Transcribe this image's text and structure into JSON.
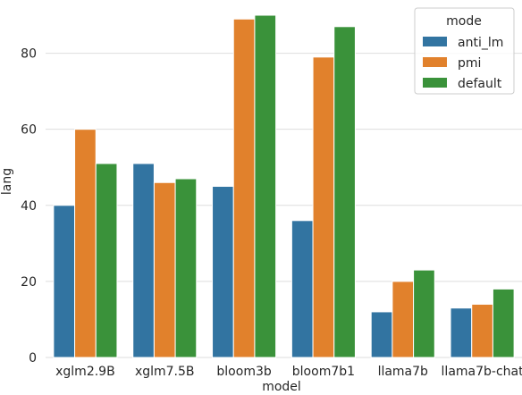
{
  "chart_data": {
    "type": "bar",
    "title": "",
    "xlabel": "model",
    "ylabel": "lang",
    "ylim": [
      0,
      94
    ],
    "yticks": [
      0,
      20,
      40,
      60,
      80
    ],
    "grid": true,
    "legend_position": "top-right",
    "legend_title": "mode",
    "categories": [
      "xglm2.9B",
      "xglm7.5B",
      "bloom3b",
      "bloom7b1",
      "llama7b",
      "llama7b-chat"
    ],
    "series": [
      {
        "name": "anti_lm",
        "color": "#3274a1",
        "values": [
          40,
          51,
          45,
          36,
          12,
          13
        ]
      },
      {
        "name": "pmi",
        "color": "#e1812c",
        "values": [
          60,
          46,
          89,
          79,
          20,
          14
        ]
      },
      {
        "name": "default",
        "color": "#3a923a",
        "values": [
          51,
          47,
          90,
          87,
          23,
          18
        ]
      }
    ]
  }
}
